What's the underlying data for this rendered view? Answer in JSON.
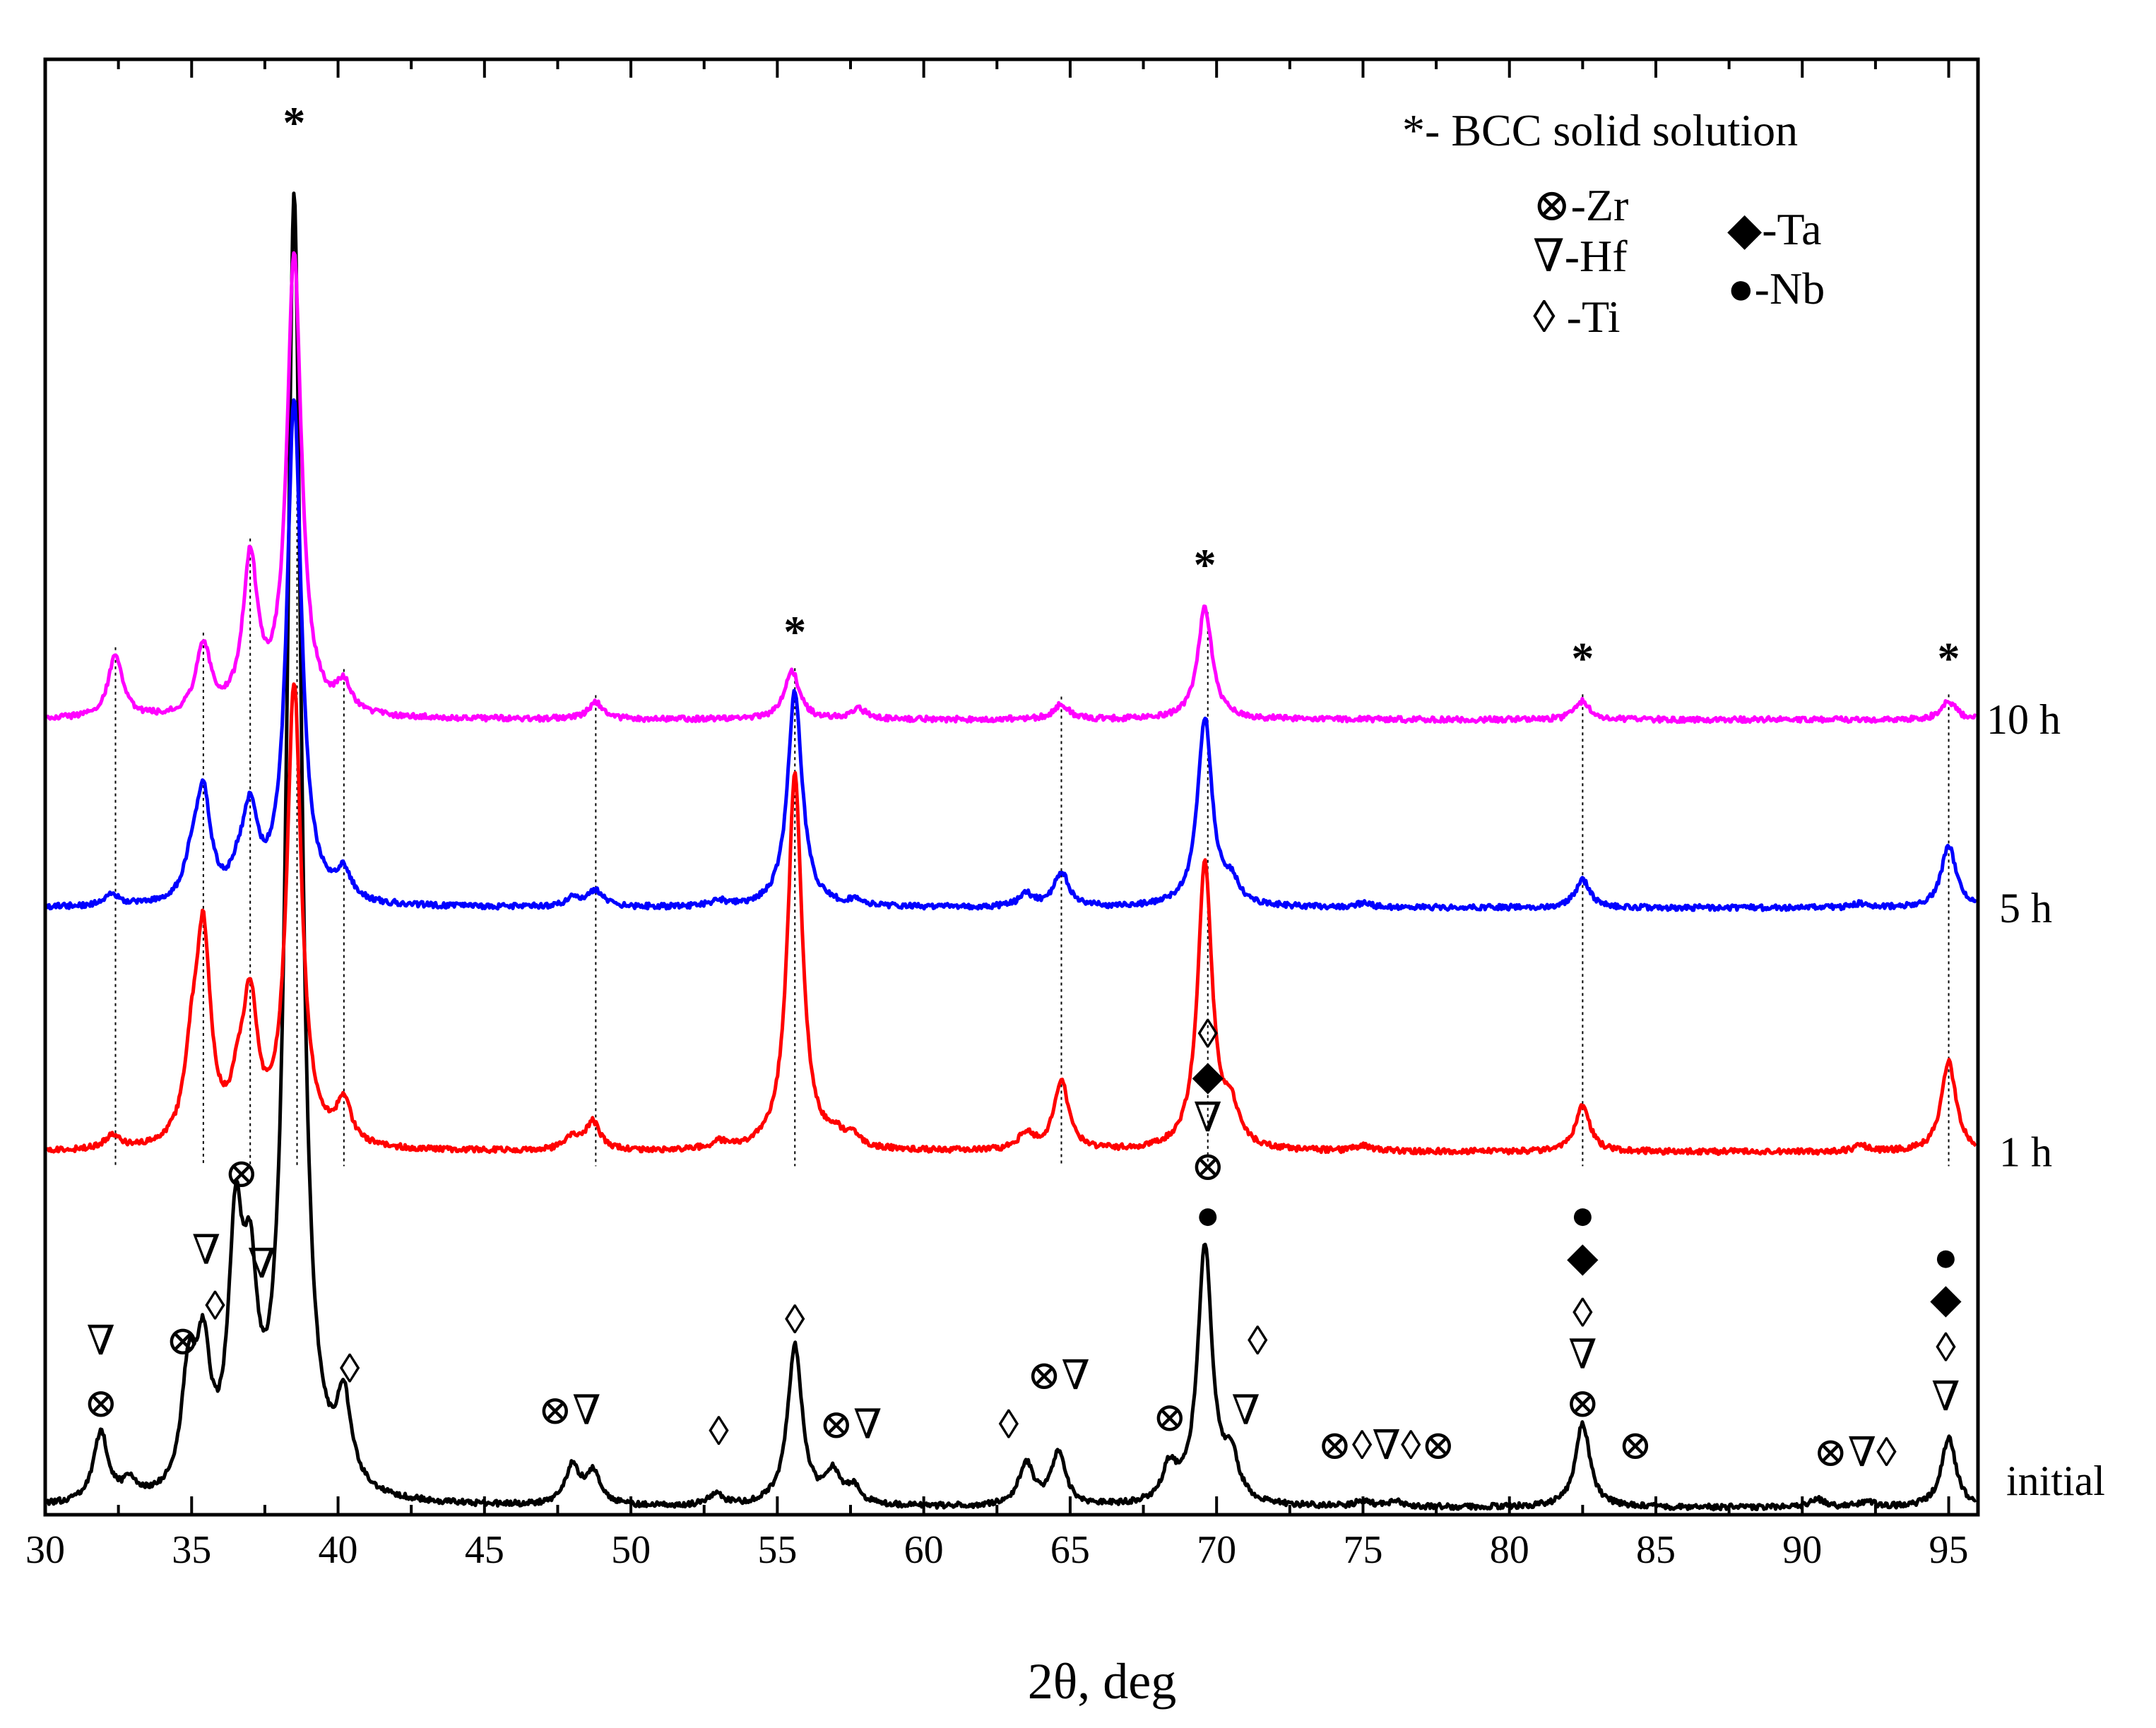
{
  "chart_data": {
    "type": "line",
    "title": "",
    "xlabel": "2θ, deg",
    "ylabel": "",
    "xlim": [
      30,
      96
    ],
    "x_ticks": [
      30,
      35,
      40,
      45,
      50,
      55,
      60,
      65,
      70,
      75,
      80,
      85,
      90,
      95
    ],
    "x_tick_labels": [
      "30",
      "35",
      "40",
      "45",
      "50",
      "55",
      "60",
      "65",
      "70",
      "75",
      "80",
      "85",
      "90",
      "95"
    ],
    "y_range": [
      0,
      1
    ],
    "grid": false,
    "legend_position": "top-right",
    "series": [
      {
        "name": "initial",
        "label": "initial",
        "color": "#000000",
        "baseline": 0.0,
        "peaks": [
          [
            31.9,
            0.05
          ],
          [
            32.9,
            0.012
          ],
          [
            34.9,
            0.08
          ],
          [
            35.4,
            0.09
          ],
          [
            36.5,
            0.17
          ],
          [
            37.0,
            0.12
          ],
          [
            38.5,
            0.93
          ],
          [
            40.2,
            0.06
          ],
          [
            48.0,
            0.027
          ],
          [
            48.7,
            0.023
          ],
          [
            52.9,
            0.008
          ],
          [
            55.6,
            0.115
          ],
          [
            56.9,
            0.022
          ],
          [
            57.6,
            0.012
          ],
          [
            63.5,
            0.03
          ],
          [
            64.6,
            0.037
          ],
          [
            68.4,
            0.025
          ],
          [
            69.6,
            0.185
          ],
          [
            70.5,
            0.03
          ],
          [
            75.0,
            0.004
          ],
          [
            76.1,
            0.004
          ],
          [
            82.5,
            0.06
          ],
          [
            90.5,
            0.006
          ],
          [
            92.2,
            0.004
          ],
          [
            95.0,
            0.05
          ]
        ]
      },
      {
        "name": "1 h",
        "label": "1 h",
        "color": "#ff0000",
        "baseline": 0.255,
        "peaks": [
          [
            32.3,
            0.01
          ],
          [
            35.0,
            0.05
          ],
          [
            35.4,
            0.145
          ],
          [
            36.6,
            0.03
          ],
          [
            37.0,
            0.095
          ],
          [
            38.5,
            0.33
          ],
          [
            40.2,
            0.03
          ],
          [
            48.0,
            0.01
          ],
          [
            48.7,
            0.02
          ],
          [
            53.0,
            0.005
          ],
          [
            55.6,
            0.27
          ],
          [
            57.0,
            0.008
          ],
          [
            57.6,
            0.007
          ],
          [
            63.5,
            0.012
          ],
          [
            64.7,
            0.05
          ],
          [
            69.6,
            0.205
          ],
          [
            70.5,
            0.025
          ],
          [
            75.0,
            0.004
          ],
          [
            82.5,
            0.033
          ],
          [
            92.0,
            0.004
          ],
          [
            95.0,
            0.065
          ]
        ]
      },
      {
        "name": "5 h",
        "label": "5 h",
        "color": "#0000ff",
        "baseline": 0.43,
        "peaks": [
          [
            32.3,
            0.008
          ],
          [
            35.0,
            0.025
          ],
          [
            35.4,
            0.075
          ],
          [
            36.6,
            0.015
          ],
          [
            37.0,
            0.06
          ],
          [
            38.5,
            0.36
          ],
          [
            40.2,
            0.02
          ],
          [
            48.0,
            0.006
          ],
          [
            48.8,
            0.012
          ],
          [
            53.0,
            0.004
          ],
          [
            55.6,
            0.155
          ],
          [
            57.7,
            0.004
          ],
          [
            63.5,
            0.009
          ],
          [
            64.7,
            0.025
          ],
          [
            69.6,
            0.135
          ],
          [
            70.5,
            0.015
          ],
          [
            75.0,
            0.003
          ],
          [
            82.5,
            0.02
          ],
          [
            92.0,
            0.003
          ],
          [
            95.0,
            0.045
          ]
        ]
      },
      {
        "name": "10 h",
        "label": "10 h",
        "color": "#ff00ff",
        "baseline": 0.565,
        "peaks": [
          [
            32.4,
            0.045
          ],
          [
            35.4,
            0.05
          ],
          [
            37.0,
            0.11
          ],
          [
            38.5,
            0.33
          ],
          [
            40.2,
            0.02
          ],
          [
            48.8,
            0.012
          ],
          [
            55.5,
            0.035
          ],
          [
            57.8,
            0.007
          ],
          [
            64.7,
            0.011
          ],
          [
            69.6,
            0.08
          ],
          [
            82.5,
            0.013
          ],
          [
            95.0,
            0.013
          ]
        ]
      }
    ],
    "reference_lines_x": [
      32.4,
      35.4,
      37.0,
      38.6,
      40.2,
      48.8,
      55.6,
      64.7,
      69.7,
      82.5,
      95.0
    ],
    "bcc_markers": [
      {
        "x": 38.5,
        "label": "*"
      },
      {
        "x": 55.6,
        "label": "*"
      },
      {
        "x": 69.6,
        "label": "*"
      },
      {
        "x": 82.5,
        "label": "*"
      },
      {
        "x": 95.0,
        "label": "*"
      }
    ],
    "phase_annotations": [
      {
        "x": 31.9,
        "y": 0.065,
        "text": "⊗"
      },
      {
        "x": 31.9,
        "y": 0.11,
        "text": "∇"
      },
      {
        "x": 34.7,
        "y": 0.11,
        "text": "⊗"
      },
      {
        "x": 35.8,
        "y": 0.135,
        "text": "◊"
      },
      {
        "x": 35.5,
        "y": 0.175,
        "text": "∇"
      },
      {
        "x": 36.7,
        "y": 0.23,
        "text": "⊗"
      },
      {
        "x": 37.4,
        "y": 0.165,
        "text": "∇"
      },
      {
        "x": 40.4,
        "y": 0.09,
        "text": "◊"
      },
      {
        "x": 47.9,
        "y": 0.06,
        "text": "⊗∇"
      },
      {
        "x": 53.0,
        "y": 0.045,
        "text": "◊"
      },
      {
        "x": 55.6,
        "y": 0.125,
        "text": "◊"
      },
      {
        "x": 57.5,
        "y": 0.05,
        "text": "⊗∇"
      },
      {
        "x": 62.9,
        "y": 0.05,
        "text": "◊"
      },
      {
        "x": 64.6,
        "y": 0.085,
        "text": "⊗∇"
      },
      {
        "x": 68.4,
        "y": 0.055,
        "text": "⊗"
      },
      {
        "x": 71.4,
        "y": 0.11,
        "text": "◊"
      },
      {
        "x": 71.0,
        "y": 0.06,
        "text": "∇"
      },
      {
        "x": 69.7,
        "y": 0.2,
        "text": "●"
      },
      {
        "x": 69.7,
        "y": 0.235,
        "text": "⊗"
      },
      {
        "x": 69.7,
        "y": 0.27,
        "text": "∇"
      },
      {
        "x": 69.7,
        "y": 0.3,
        "text": "◆"
      },
      {
        "x": 69.7,
        "y": 0.33,
        "text": "◊"
      },
      {
        "x": 75.8,
        "y": 0.035,
        "text": "⊗◊∇◊⊗"
      },
      {
        "x": 82.5,
        "y": 0.065,
        "text": "⊗"
      },
      {
        "x": 82.5,
        "y": 0.1,
        "text": "∇"
      },
      {
        "x": 82.5,
        "y": 0.13,
        "text": "◊"
      },
      {
        "x": 82.5,
        "y": 0.17,
        "text": "◆"
      },
      {
        "x": 82.5,
        "y": 0.2,
        "text": "●"
      },
      {
        "x": 84.3,
        "y": 0.035,
        "text": "⊗"
      },
      {
        "x": 91.8,
        "y": 0.03,
        "text": "⊗∇◊"
      },
      {
        "x": 94.9,
        "y": 0.07,
        "text": "∇"
      },
      {
        "x": 94.9,
        "y": 0.105,
        "text": "◊"
      },
      {
        "x": 94.9,
        "y": 0.14,
        "text": "◆"
      },
      {
        "x": 94.9,
        "y": 0.17,
        "text": "●"
      }
    ],
    "legend": {
      "bcc": "*- BCC solid solution",
      "zr": "⊗-Zr",
      "hf": "∇-Hf",
      "ti": "◊ -Ti",
      "ta": "◆-Ta",
      "nb": "●-Nb"
    }
  }
}
